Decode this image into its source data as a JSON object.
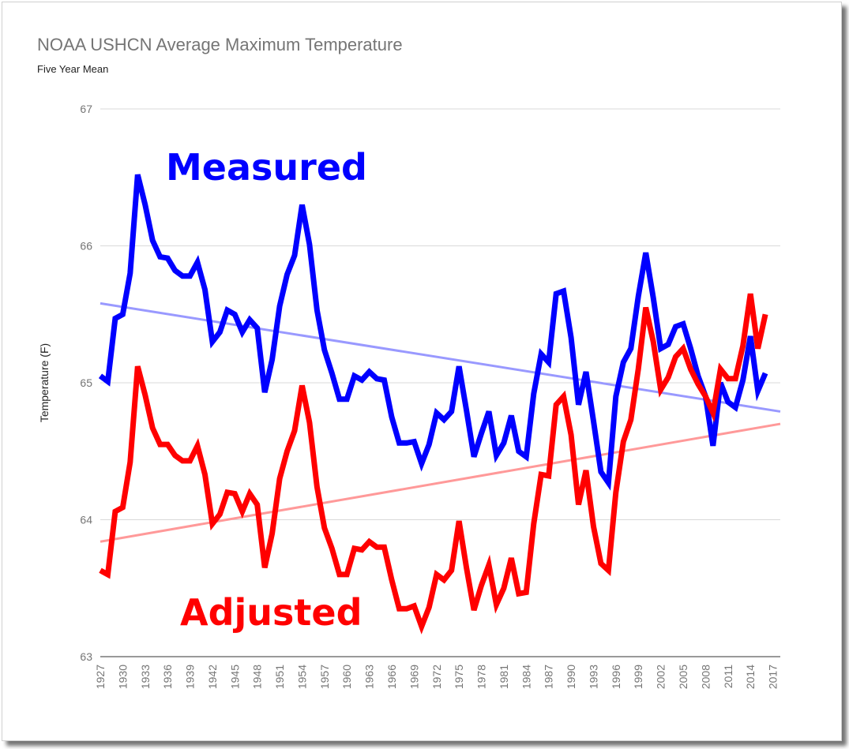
{
  "chart_data": {
    "type": "line",
    "title": "NOAA USHCN Average Maximum Temperature",
    "subtitle": "Five Year Mean",
    "xlabel": "",
    "ylabel": "Temperature (F)",
    "ylim": [
      63,
      67
    ],
    "yticks": [
      63,
      64,
      65,
      66,
      67
    ],
    "grid": true,
    "x_tick_labels": [
      "1927",
      "1930",
      "1933",
      "1936",
      "1939",
      "1942",
      "1945",
      "1948",
      "1951",
      "1954",
      "1957",
      "1960",
      "1963",
      "1966",
      "1969",
      "1972",
      "1975",
      "1978",
      "1981",
      "1984",
      "1987",
      "1990",
      "1993",
      "1996",
      "1999",
      "2002",
      "2005",
      "2008",
      "2011",
      "2014",
      "2017"
    ],
    "x": [
      1927,
      1928,
      1929,
      1930,
      1931,
      1932,
      1933,
      1934,
      1935,
      1936,
      1937,
      1938,
      1939,
      1940,
      1941,
      1942,
      1943,
      1944,
      1945,
      1946,
      1947,
      1948,
      1949,
      1950,
      1951,
      1952,
      1953,
      1954,
      1955,
      1956,
      1957,
      1958,
      1959,
      1960,
      1961,
      1962,
      1963,
      1964,
      1965,
      1966,
      1967,
      1968,
      1969,
      1970,
      1971,
      1972,
      1973,
      1974,
      1975,
      1976,
      1977,
      1978,
      1979,
      1980,
      1981,
      1982,
      1983,
      1984,
      1985,
      1986,
      1987,
      1988,
      1989,
      1990,
      1991,
      1992,
      1993,
      1994,
      1995,
      1996,
      1997,
      1998,
      1999,
      2000,
      2001,
      2002,
      2003,
      2004,
      2005,
      2006,
      2007,
      2008,
      2009,
      2010,
      2011,
      2012,
      2013,
      2014,
      2015,
      2016
    ],
    "series": [
      {
        "name": "Measured",
        "color": "#0000ff",
        "values": [
          65.05,
          65.01,
          65.47,
          65.5,
          65.8,
          66.52,
          66.3,
          66.04,
          65.92,
          65.91,
          65.82,
          65.78,
          65.78,
          65.88,
          65.68,
          65.3,
          65.37,
          65.53,
          65.5,
          65.37,
          65.46,
          65.4,
          64.93,
          65.17,
          65.56,
          65.79,
          65.93,
          66.3,
          66.01,
          65.53,
          65.24,
          65.07,
          64.88,
          64.88,
          65.05,
          65.02,
          65.08,
          65.03,
          65.02,
          64.75,
          64.56,
          64.56,
          64.57,
          64.41,
          64.55,
          64.78,
          64.73,
          64.79,
          65.12,
          64.8,
          64.46,
          64.63,
          64.79,
          64.47,
          64.56,
          64.76,
          64.5,
          64.46,
          64.92,
          65.21,
          65.15,
          65.65,
          65.67,
          65.33,
          64.84,
          65.08,
          64.72,
          64.35,
          64.27,
          64.9,
          65.15,
          65.25,
          65.63,
          65.95,
          65.62,
          65.25,
          65.28,
          65.41,
          65.43,
          65.25,
          65.05,
          64.9,
          64.54,
          65.0,
          64.86,
          64.82,
          65.02,
          65.34,
          64.94,
          65.07
        ]
      },
      {
        "name": "Adjusted",
        "color": "#ff0000",
        "values": [
          63.63,
          63.6,
          64.06,
          64.09,
          64.42,
          65.12,
          64.91,
          64.67,
          64.55,
          64.55,
          64.47,
          64.43,
          64.43,
          64.54,
          64.33,
          63.97,
          64.04,
          64.2,
          64.19,
          64.06,
          64.19,
          64.11,
          63.65,
          63.9,
          64.3,
          64.5,
          64.65,
          64.98,
          64.71,
          64.24,
          63.94,
          63.79,
          63.6,
          63.6,
          63.79,
          63.78,
          63.84,
          63.8,
          63.8,
          63.56,
          63.35,
          63.35,
          63.37,
          63.22,
          63.36,
          63.6,
          63.56,
          63.63,
          63.99,
          63.65,
          63.34,
          63.52,
          63.67,
          63.38,
          63.5,
          63.72,
          63.46,
          63.47,
          63.97,
          64.33,
          64.32,
          64.84,
          64.9,
          64.62,
          64.11,
          64.36,
          63.95,
          63.68,
          63.63,
          64.2,
          64.57,
          64.73,
          65.1,
          65.55,
          65.3,
          64.95,
          65.04,
          65.19,
          65.25,
          65.1,
          64.99,
          64.9,
          64.78,
          65.1,
          65.03,
          65.03,
          65.27,
          65.65,
          65.25,
          65.5
        ]
      }
    ],
    "trendlines": [
      {
        "series": "Measured",
        "color": "#9999ff",
        "start": {
          "x": 1927,
          "y": 65.58
        },
        "end": {
          "x": 2018,
          "y": 64.79
        }
      },
      {
        "series": "Adjusted",
        "color": "#ff9999",
        "start": {
          "x": 1927,
          "y": 63.84
        },
        "end": {
          "x": 2018,
          "y": 64.7
        }
      }
    ],
    "annotations": [
      {
        "text": "Measured",
        "color": "#0000ff"
      },
      {
        "text": "Adjusted",
        "color": "#ff0000"
      }
    ]
  }
}
